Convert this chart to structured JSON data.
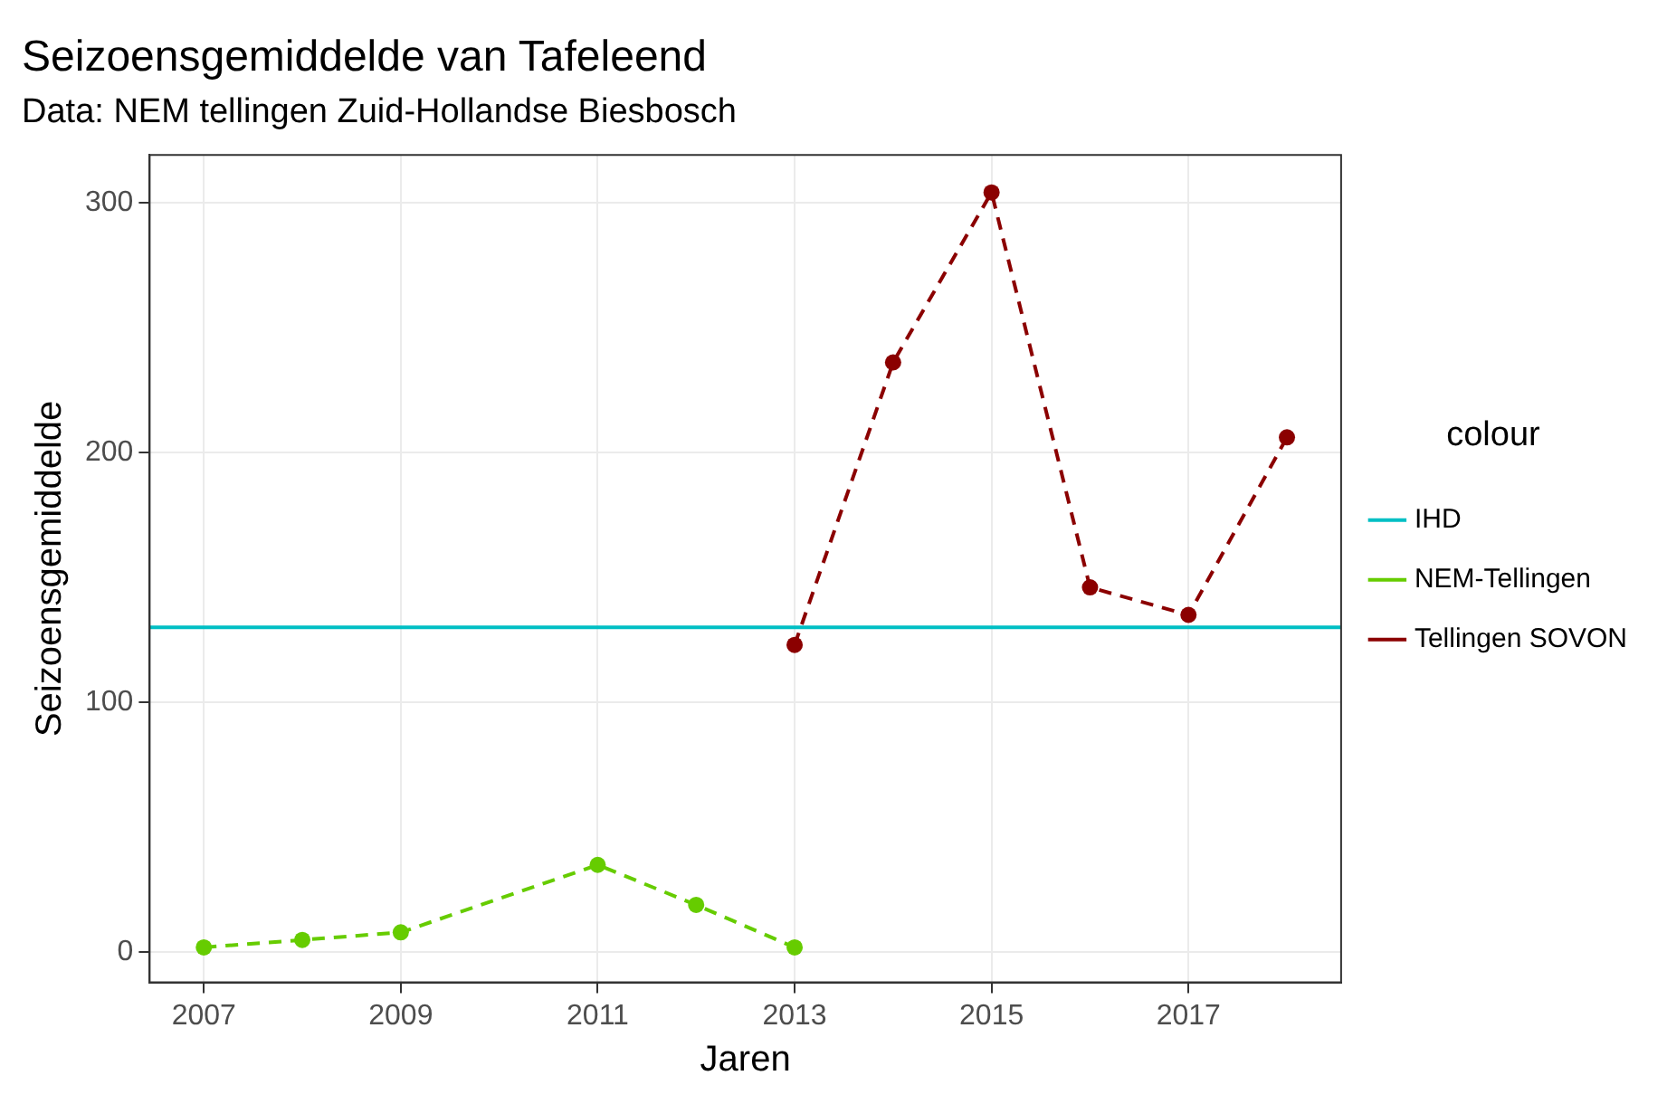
{
  "chart_data": {
    "type": "line",
    "title": "Seizoensgemiddelde van Tafeleend",
    "subtitle": "Data: NEM tellingen Zuid-Hollandse Biesbosch",
    "xlabel": "Jaren",
    "ylabel": "Seizoensgemiddelde",
    "legend_title": "colour",
    "legend": "right",
    "grid": true,
    "x": [
      2007,
      2008,
      2009,
      2010,
      2011,
      2012,
      2013,
      2014,
      2015,
      2016,
      2017,
      2018
    ],
    "xlim": [
      2006.45,
      2018.55
    ],
    "xticks": [
      2007,
      2009,
      2011,
      2013,
      2015,
      2017
    ],
    "ylim": [
      -12,
      319
    ],
    "yticks": [
      0,
      100,
      200,
      300
    ],
    "series": [
      {
        "name": "IHD",
        "color": "#00bfc4",
        "x": [
          2006.45,
          2018.55
        ],
        "values": [
          130,
          130
        ],
        "marker": "none",
        "line_style": "solid"
      },
      {
        "name": "NEM-Tellingen",
        "color": "#66cc00",
        "values": [
          2,
          5,
          8,
          null,
          35,
          19,
          2,
          null,
          null,
          null,
          null,
          null
        ],
        "marker": "circle",
        "line_style": "dashed"
      },
      {
        "name": "Tellingen SOVON",
        "color": "#8b0000",
        "values": [
          null,
          null,
          null,
          null,
          null,
          null,
          123,
          236,
          304,
          146,
          135,
          206
        ],
        "marker": "circle",
        "line_style": "dashed"
      }
    ]
  }
}
